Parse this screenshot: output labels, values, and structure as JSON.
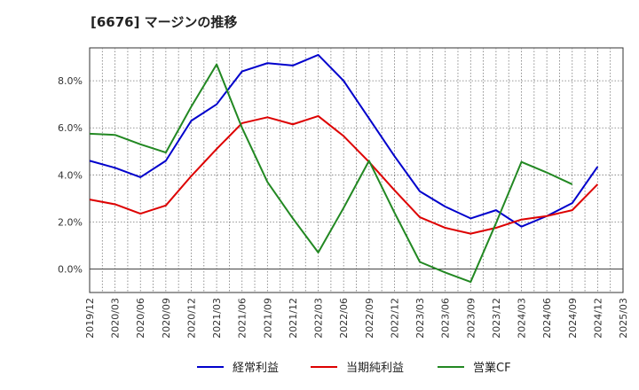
{
  "title": "[6676]  マージンの推移",
  "chart_data": {
    "type": "line",
    "x": [
      "2019/12",
      "2020/03",
      "2020/06",
      "2020/09",
      "2020/12",
      "2021/03",
      "2021/06",
      "2021/09",
      "2021/12",
      "2022/03",
      "2022/06",
      "2022/09",
      "2022/12",
      "2023/03",
      "2023/06",
      "2023/09",
      "2023/12",
      "2024/03",
      "2024/06",
      "2024/09",
      "2024/12",
      "2025/03"
    ],
    "ylim": [
      -1.0,
      9.4
    ],
    "yticks": [
      0,
      2,
      4,
      6,
      8
    ],
    "ytick_labels": [
      "0.0%",
      "2.0%",
      "4.0%",
      "6.0%",
      "8.0%"
    ],
    "grid": true,
    "legend_position": "bottom",
    "series": [
      {
        "name": "経常利益",
        "color": "#0000cc",
        "values": [
          4.6,
          4.3,
          3.9,
          4.6,
          6.3,
          7.0,
          8.4,
          8.75,
          8.65,
          9.1,
          8.0,
          6.4,
          4.8,
          3.3,
          2.65,
          2.15,
          2.5,
          1.8,
          2.25,
          2.8,
          4.35,
          null
        ]
      },
      {
        "name": "当期純利益",
        "color": "#dd0000",
        "values": [
          2.95,
          2.75,
          2.35,
          2.7,
          3.95,
          5.1,
          6.2,
          6.45,
          6.15,
          6.5,
          5.65,
          4.55,
          3.35,
          2.2,
          1.75,
          1.5,
          1.75,
          2.1,
          2.25,
          2.5,
          3.6,
          null
        ]
      },
      {
        "name": "営業CF",
        "color": "#228822",
        "values": [
          5.75,
          5.7,
          5.3,
          4.95,
          6.9,
          8.7,
          6.0,
          3.7,
          2.15,
          0.7,
          2.6,
          4.6,
          2.4,
          0.3,
          -0.15,
          -0.55,
          1.95,
          4.55,
          4.1,
          3.6,
          null,
          null
        ]
      }
    ]
  }
}
